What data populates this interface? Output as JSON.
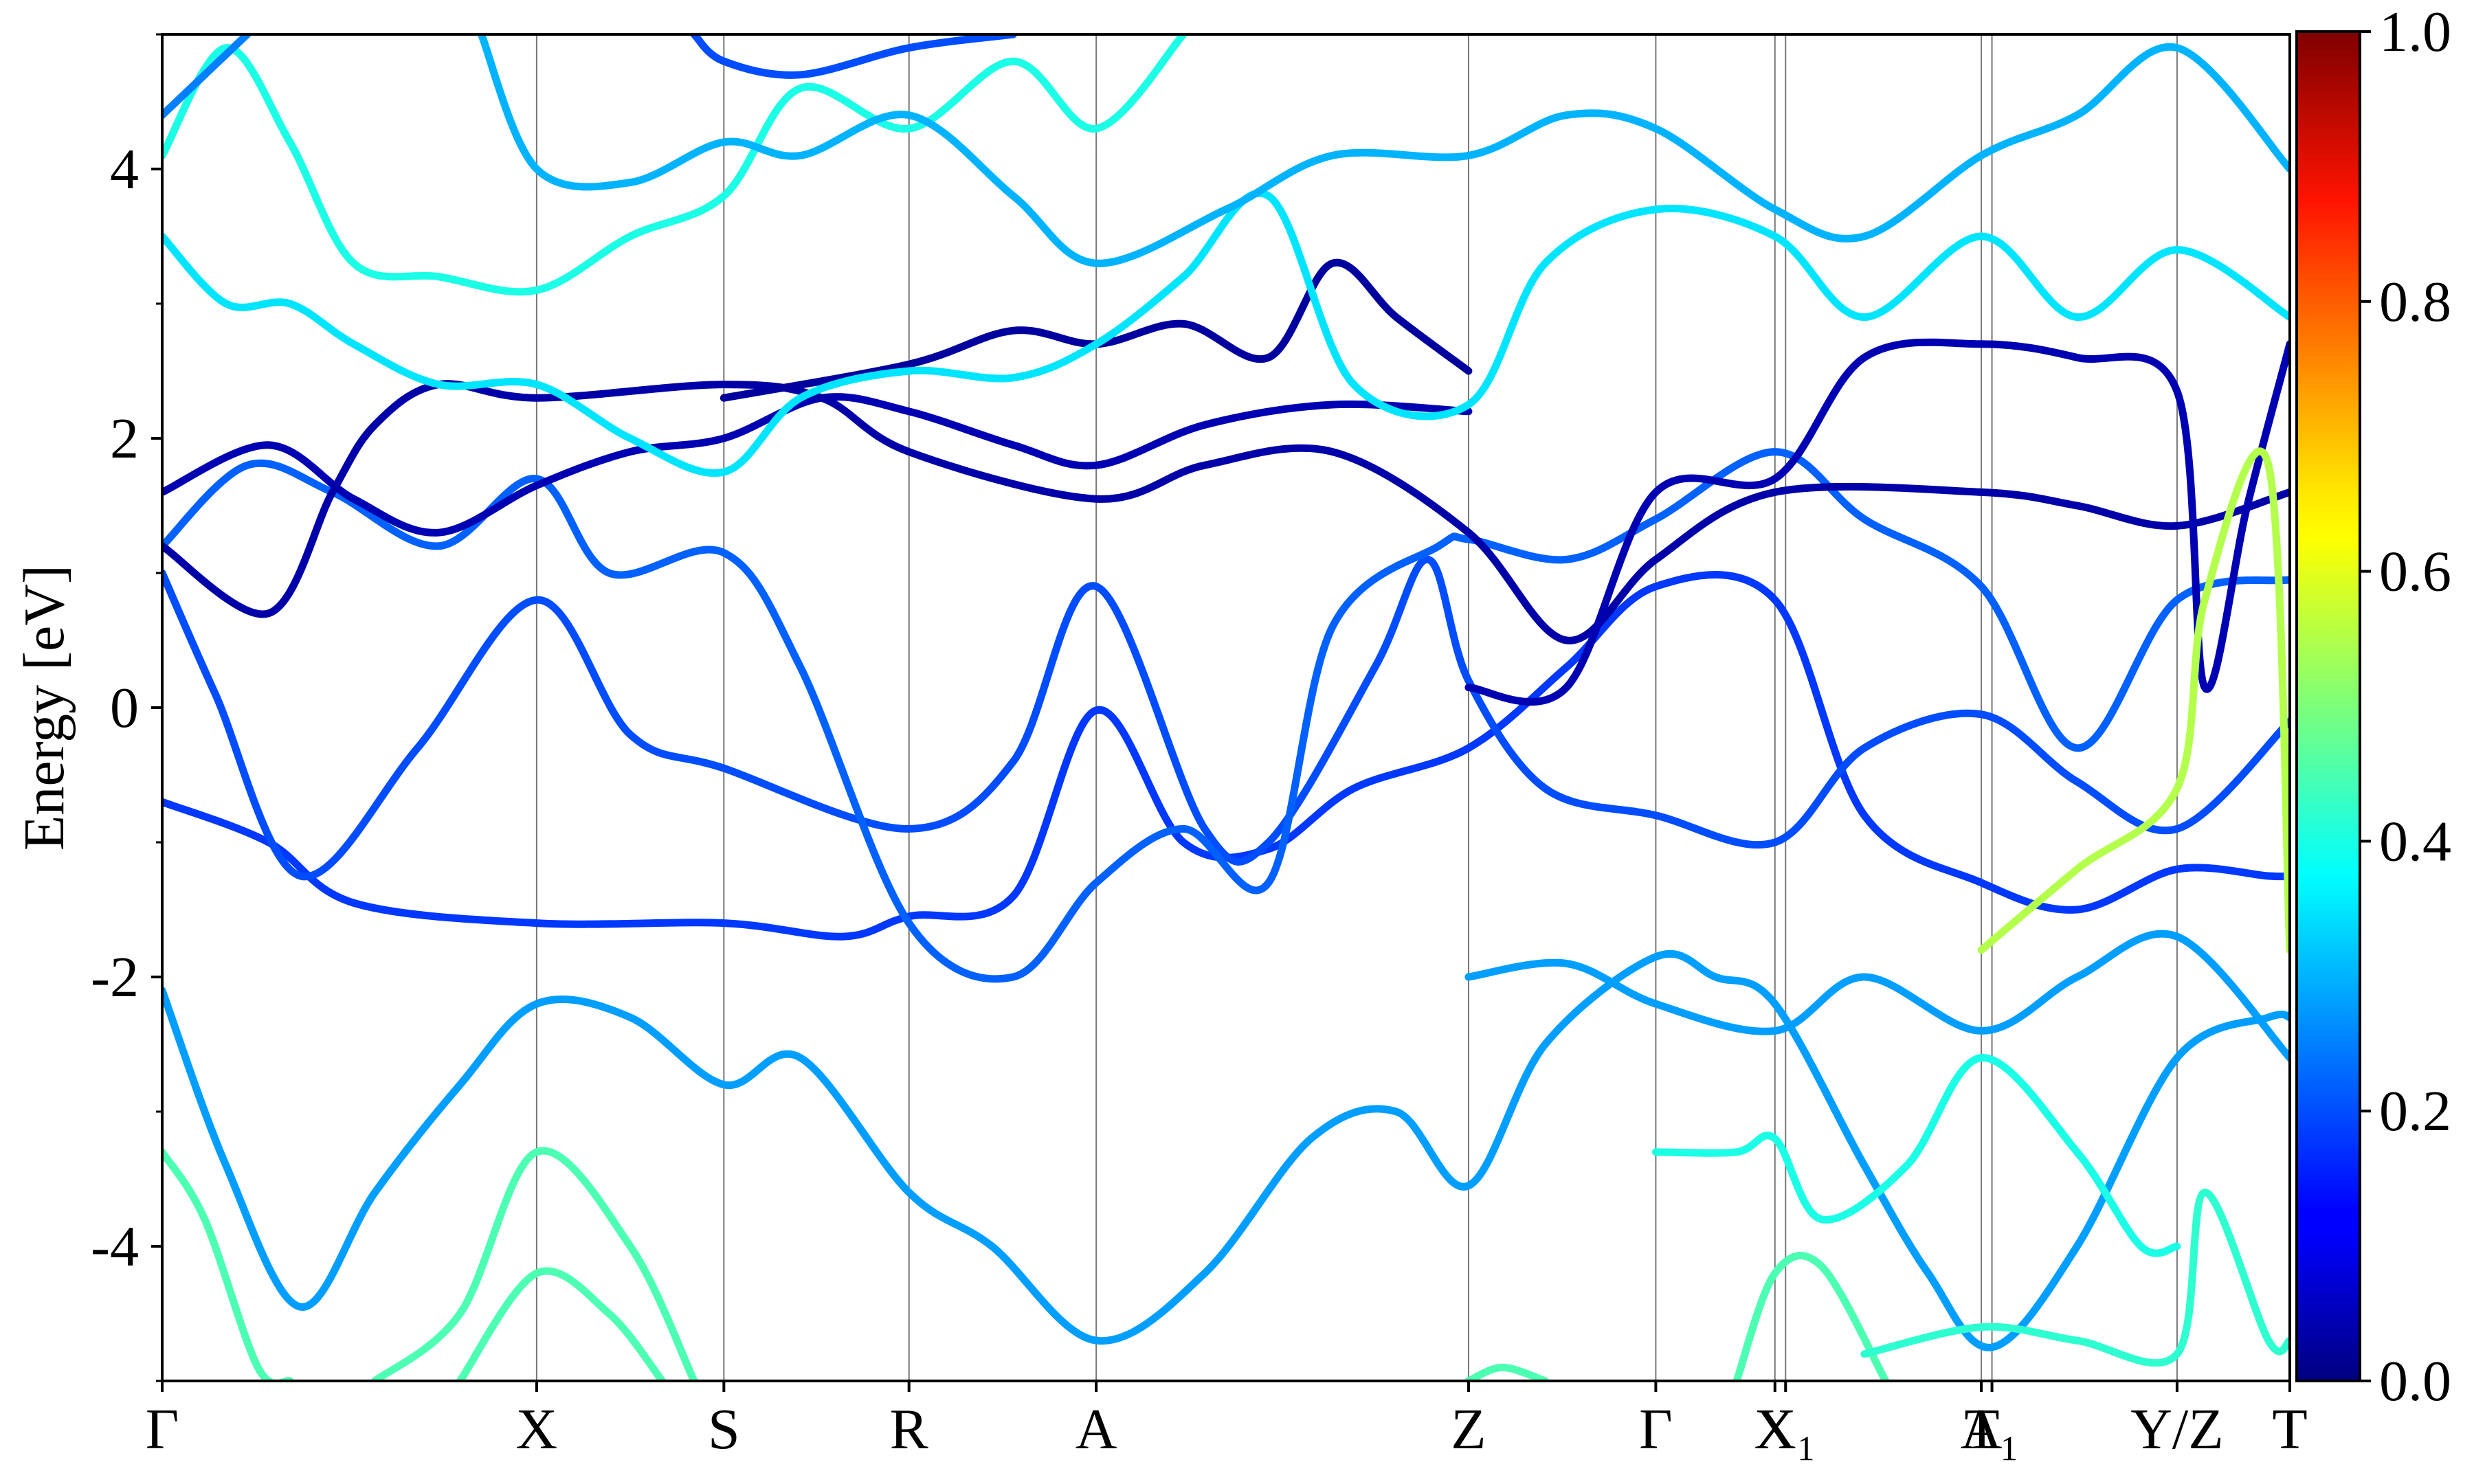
{
  "chart_data": {
    "type": "line",
    "title": "",
    "ylabel": "Energy [eV]",
    "xlabel": "",
    "ylim": [
      -5,
      5
    ],
    "yticks": [
      -4,
      -2,
      0,
      2,
      4
    ],
    "yticklabels": [
      "-4",
      "-2",
      "0",
      "2",
      "4"
    ],
    "xlim": [
      0,
      1
    ],
    "xticks": [
      {
        "label": "Γ",
        "x": 0.0
      },
      {
        "label": "X",
        "x": 0.176
      },
      {
        "label": "S",
        "x": 0.264
      },
      {
        "label": "R",
        "x": 0.351
      },
      {
        "label": "A",
        "x": 0.439
      },
      {
        "label": "Z",
        "x": 0.614
      },
      {
        "label": "Γ",
        "x": 0.702
      },
      {
        "label": "X",
        "x": 0.758
      },
      {
        "label": "X₁",
        "x": 0.763
      },
      {
        "label": "A",
        "x": 0.855
      },
      {
        "label": "T₁",
        "x": 0.86
      },
      {
        "label": "Y/Z",
        "x": 0.947
      },
      {
        "label": "T",
        "x": 1.0
      }
    ],
    "colorbar": {
      "colormap": "jet",
      "range": [
        0.0,
        1.0
      ],
      "ticks": [
        0.0,
        0.2,
        0.4,
        0.6,
        0.8,
        1.0
      ],
      "ticklabels": [
        "0.0",
        "0.2",
        "0.4",
        "0.6",
        "0.8",
        "1.0"
      ]
    },
    "grid": false,
    "series": [
      {
        "values": [
          [
            0,
            -3.3
          ],
          [
            0.02,
            -3.8
          ],
          [
            0.045,
            -4.9
          ],
          [
            0.06,
            -5.0
          ]
        ],
        "weight": 0.45
      },
      {
        "values": [
          [
            0,
            -2.1
          ],
          [
            0.03,
            -3.4
          ],
          [
            0.065,
            -4.45
          ],
          [
            0.1,
            -3.6
          ],
          [
            0.14,
            -2.8
          ],
          [
            0.176,
            -2.2
          ],
          [
            0.22,
            -2.3
          ],
          [
            0.264,
            -2.8
          ],
          [
            0.3,
            -2.6
          ],
          [
            0.351,
            -3.6
          ],
          [
            0.39,
            -4.0
          ],
          [
            0.439,
            -4.7
          ],
          [
            0.49,
            -4.2
          ],
          [
            0.54,
            -3.2
          ],
          [
            0.58,
            -3.0
          ],
          [
            0.614,
            -3.55
          ],
          [
            0.65,
            -2.5
          ],
          [
            0.702,
            -1.85
          ],
          [
            0.73,
            -2.0
          ],
          [
            0.758,
            -2.2
          ],
          [
            0.8,
            -3.4
          ],
          [
            0.83,
            -4.2
          ],
          [
            0.86,
            -4.75
          ],
          [
            0.9,
            -4.0
          ],
          [
            0.947,
            -2.6
          ],
          [
            0.99,
            -2.3
          ],
          [
            1.0,
            -2.3
          ]
        ],
        "weight": 0.28
      },
      {
        "values": [
          [
            0.1,
            -5.0
          ],
          [
            0.14,
            -4.5
          ],
          [
            0.176,
            -3.3
          ],
          [
            0.22,
            -4.0
          ],
          [
            0.25,
            -5.0
          ]
        ],
        "weight": 0.45
      },
      {
        "values": [
          [
            0.14,
            -5.0
          ],
          [
            0.176,
            -4.2
          ],
          [
            0.21,
            -4.5
          ],
          [
            0.235,
            -5.0
          ]
        ],
        "weight": 0.45
      },
      {
        "values": [
          [
            0,
            -0.7
          ],
          [
            0.05,
            -1.0
          ],
          [
            0.09,
            -1.45
          ],
          [
            0.176,
            -1.6
          ],
          [
            0.264,
            -1.6
          ],
          [
            0.32,
            -1.7
          ],
          [
            0.351,
            -1.55
          ],
          [
            0.4,
            -1.4
          ],
          [
            0.439,
            -0.02
          ],
          [
            0.48,
            -1.0
          ],
          [
            0.52,
            -1.05
          ],
          [
            0.56,
            -0.6
          ],
          [
            0.614,
            -0.3
          ],
          [
            0.66,
            0.3
          ],
          [
            0.702,
            0.9
          ],
          [
            0.758,
            0.8
          ],
          [
            0.8,
            -0.8
          ],
          [
            0.855,
            -1.3
          ],
          [
            0.9,
            -1.5
          ],
          [
            0.947,
            -1.2
          ],
          [
            0.99,
            -1.25
          ],
          [
            1.0,
            -1.25
          ]
        ],
        "weight": 0.18
      },
      {
        "values": [
          [
            0,
            1.0
          ],
          [
            0.025,
            0.1
          ],
          [
            0.065,
            -1.25
          ],
          [
            0.12,
            -0.3
          ],
          [
            0.176,
            0.8
          ],
          [
            0.22,
            -0.2
          ],
          [
            0.264,
            -0.45
          ],
          [
            0.351,
            -0.9
          ],
          [
            0.4,
            -0.4
          ],
          [
            0.439,
            0.9
          ],
          [
            0.49,
            -0.9
          ],
          [
            0.52,
            -1.0
          ],
          [
            0.57,
            0.3
          ],
          [
            0.595,
            1.1
          ],
          [
            0.614,
            0.2
          ],
          [
            0.65,
            -0.6
          ],
          [
            0.702,
            -0.8
          ],
          [
            0.758,
            -1.0
          ],
          [
            0.8,
            -0.3
          ],
          [
            0.855,
            -0.05
          ],
          [
            0.9,
            -0.55
          ],
          [
            0.947,
            -0.9
          ],
          [
            1.0,
            -0.1
          ]
        ],
        "weight": 0.2
      },
      {
        "values": [
          [
            0,
            1.2
          ],
          [
            0.04,
            1.8
          ],
          [
            0.08,
            1.6
          ],
          [
            0.13,
            1.2
          ],
          [
            0.176,
            1.7
          ],
          [
            0.21,
            1.0
          ],
          [
            0.264,
            1.15
          ],
          [
            0.3,
            0.3
          ],
          [
            0.351,
            -1.6
          ],
          [
            0.4,
            -2.0
          ],
          [
            0.439,
            -1.3
          ],
          [
            0.48,
            -0.9
          ],
          [
            0.52,
            -1.3
          ],
          [
            0.55,
            0.6
          ],
          [
            0.6,
            1.2
          ],
          [
            0.614,
            1.25
          ],
          [
            0.66,
            1.1
          ],
          [
            0.702,
            1.4
          ],
          [
            0.758,
            1.9
          ],
          [
            0.8,
            1.4
          ],
          [
            0.855,
            0.9
          ],
          [
            0.9,
            -0.3
          ],
          [
            0.947,
            0.8
          ],
          [
            1.0,
            0.95
          ]
        ],
        "weight": 0.22
      },
      {
        "values": [
          [
            0,
            1.6
          ],
          [
            0.05,
            1.95
          ],
          [
            0.09,
            1.55
          ],
          [
            0.13,
            1.3
          ],
          [
            0.176,
            1.65
          ],
          [
            0.22,
            1.9
          ],
          [
            0.264,
            2.0
          ],
          [
            0.31,
            2.3
          ],
          [
            0.351,
            2.2
          ],
          [
            0.4,
            1.95
          ],
          [
            0.439,
            1.8
          ],
          [
            0.49,
            2.1
          ],
          [
            0.55,
            2.25
          ],
          [
            0.614,
            2.2
          ]
        ],
        "weight": 0.05
      },
      {
        "values": [
          [
            0,
            1.2
          ],
          [
            0.05,
            0.7
          ],
          [
            0.08,
            1.6
          ],
          [
            0.1,
            2.1
          ],
          [
            0.13,
            2.4
          ],
          [
            0.176,
            2.3
          ],
          [
            0.264,
            2.4
          ],
          [
            0.31,
            2.3
          ],
          [
            0.351,
            1.9
          ],
          [
            0.439,
            1.55
          ],
          [
            0.49,
            1.8
          ],
          [
            0.55,
            1.9
          ],
          [
            0.614,
            1.3
          ],
          [
            0.66,
            0.5
          ],
          [
            0.702,
            1.1
          ],
          [
            0.758,
            1.6
          ],
          [
            0.855,
            1.6
          ],
          [
            0.9,
            1.5
          ],
          [
            0.947,
            1.35
          ],
          [
            1.0,
            1.6
          ]
        ],
        "weight": 0.04
      },
      {
        "values": [
          [
            0.264,
            2.3
          ],
          [
            0.351,
            2.55
          ],
          [
            0.4,
            2.8
          ],
          [
            0.439,
            2.7
          ],
          [
            0.48,
            2.85
          ],
          [
            0.52,
            2.6
          ],
          [
            0.55,
            3.3
          ],
          [
            0.58,
            2.9
          ],
          [
            0.614,
            2.5
          ]
        ],
        "weight": 0.03
      },
      {
        "values": [
          [
            0.614,
            0.15
          ],
          [
            0.66,
            0.15
          ],
          [
            0.702,
            1.6
          ],
          [
            0.758,
            1.7
          ],
          [
            0.8,
            2.6
          ],
          [
            0.855,
            2.7
          ],
          [
            0.9,
            2.6
          ],
          [
            0.947,
            2.35
          ],
          [
            0.96,
            0.15
          ],
          [
            0.98,
            1.5
          ],
          [
            1.0,
            2.7
          ]
        ],
        "weight": 0.05
      },
      {
        "values": [
          [
            0,
            3.5
          ],
          [
            0.03,
            3.0
          ],
          [
            0.06,
            3.0
          ],
          [
            0.09,
            2.7
          ],
          [
            0.13,
            2.4
          ],
          [
            0.176,
            2.4
          ],
          [
            0.22,
            2.0
          ],
          [
            0.264,
            1.75
          ],
          [
            0.3,
            2.3
          ],
          [
            0.351,
            2.5
          ],
          [
            0.4,
            2.45
          ],
          [
            0.439,
            2.7
          ],
          [
            0.48,
            3.2
          ],
          [
            0.52,
            3.8
          ],
          [
            0.56,
            2.4
          ],
          [
            0.614,
            2.25
          ],
          [
            0.65,
            3.3
          ],
          [
            0.702,
            3.7
          ],
          [
            0.758,
            3.5
          ],
          [
            0.8,
            2.9
          ],
          [
            0.855,
            3.5
          ],
          [
            0.9,
            2.9
          ],
          [
            0.947,
            3.4
          ],
          [
            1.0,
            2.9
          ]
        ],
        "weight": 0.35
      },
      {
        "values": [
          [
            0,
            4.1
          ],
          [
            0.03,
            4.9
          ],
          [
            0.06,
            4.2
          ],
          [
            0.09,
            3.3
          ],
          [
            0.13,
            3.2
          ],
          [
            0.176,
            3.1
          ],
          [
            0.22,
            3.5
          ],
          [
            0.264,
            3.8
          ],
          [
            0.3,
            4.6
          ],
          [
            0.351,
            4.3
          ],
          [
            0.4,
            4.8
          ],
          [
            0.439,
            4.3
          ],
          [
            0.48,
            5.0
          ]
        ],
        "weight": 0.4
      },
      {
        "values": [
          [
            0,
            4.4
          ],
          [
            0.04,
            5.0
          ]
        ],
        "weight": 0.25
      },
      {
        "values": [
          [
            0.15,
            5.0
          ],
          [
            0.176,
            4.0
          ],
          [
            0.22,
            3.9
          ],
          [
            0.264,
            4.2
          ],
          [
            0.3,
            4.1
          ],
          [
            0.351,
            4.4
          ],
          [
            0.4,
            3.8
          ],
          [
            0.439,
            3.3
          ],
          [
            0.5,
            3.7
          ],
          [
            0.55,
            4.1
          ],
          [
            0.614,
            4.1
          ],
          [
            0.66,
            4.4
          ],
          [
            0.702,
            4.3
          ],
          [
            0.758,
            3.7
          ],
          [
            0.8,
            3.5
          ],
          [
            0.855,
            4.1
          ],
          [
            0.9,
            4.4
          ],
          [
            0.947,
            4.9
          ],
          [
            1.0,
            4.0
          ]
        ],
        "weight": 0.3
      },
      {
        "values": [
          [
            0.25,
            5.0
          ],
          [
            0.264,
            4.8
          ],
          [
            0.3,
            4.7
          ],
          [
            0.351,
            4.9
          ],
          [
            0.4,
            5.0
          ]
        ],
        "weight": 0.2
      },
      {
        "values": [
          [
            0.614,
            -2.0
          ],
          [
            0.66,
            -1.9
          ],
          [
            0.702,
            -2.2
          ],
          [
            0.758,
            -2.4
          ],
          [
            0.8,
            -2.0
          ],
          [
            0.855,
            -2.4
          ],
          [
            0.9,
            -2.0
          ],
          [
            0.947,
            -1.7
          ],
          [
            1.0,
            -2.6
          ]
        ],
        "weight": 0.28
      },
      {
        "values": [
          [
            0.614,
            -5.0
          ],
          [
            0.63,
            -4.9
          ],
          [
            0.65,
            -5.0
          ]
        ],
        "weight": 0.45
      },
      {
        "values": [
          [
            0.74,
            -5.0
          ],
          [
            0.758,
            -4.2
          ],
          [
            0.78,
            -4.15
          ],
          [
            0.81,
            -5.0
          ]
        ],
        "weight": 0.45
      },
      {
        "values": [
          [
            0.702,
            -3.3
          ],
          [
            0.74,
            -3.3
          ],
          [
            0.758,
            -3.2
          ],
          [
            0.78,
            -3.8
          ],
          [
            0.82,
            -3.4
          ],
          [
            0.855,
            -2.6
          ],
          [
            0.9,
            -3.3
          ],
          [
            0.93,
            -4.0
          ],
          [
            0.947,
            -4.0
          ]
        ],
        "weight": 0.4
      },
      {
        "values": [
          [
            0.8,
            -4.8
          ],
          [
            0.855,
            -4.6
          ],
          [
            0.9,
            -4.7
          ],
          [
            0.947,
            -4.8
          ],
          [
            0.96,
            -3.6
          ],
          [
            0.99,
            -4.7
          ],
          [
            1.0,
            -4.7
          ]
        ],
        "weight": 0.42
      },
      {
        "values": [
          [
            0.855,
            -1.8
          ],
          [
            0.9,
            -1.2
          ],
          [
            0.947,
            -0.6
          ],
          [
            0.96,
            0.8
          ],
          [
            0.99,
            1.8
          ],
          [
            1.0,
            -1.8
          ]
        ],
        "weight": 0.55
      }
    ]
  }
}
